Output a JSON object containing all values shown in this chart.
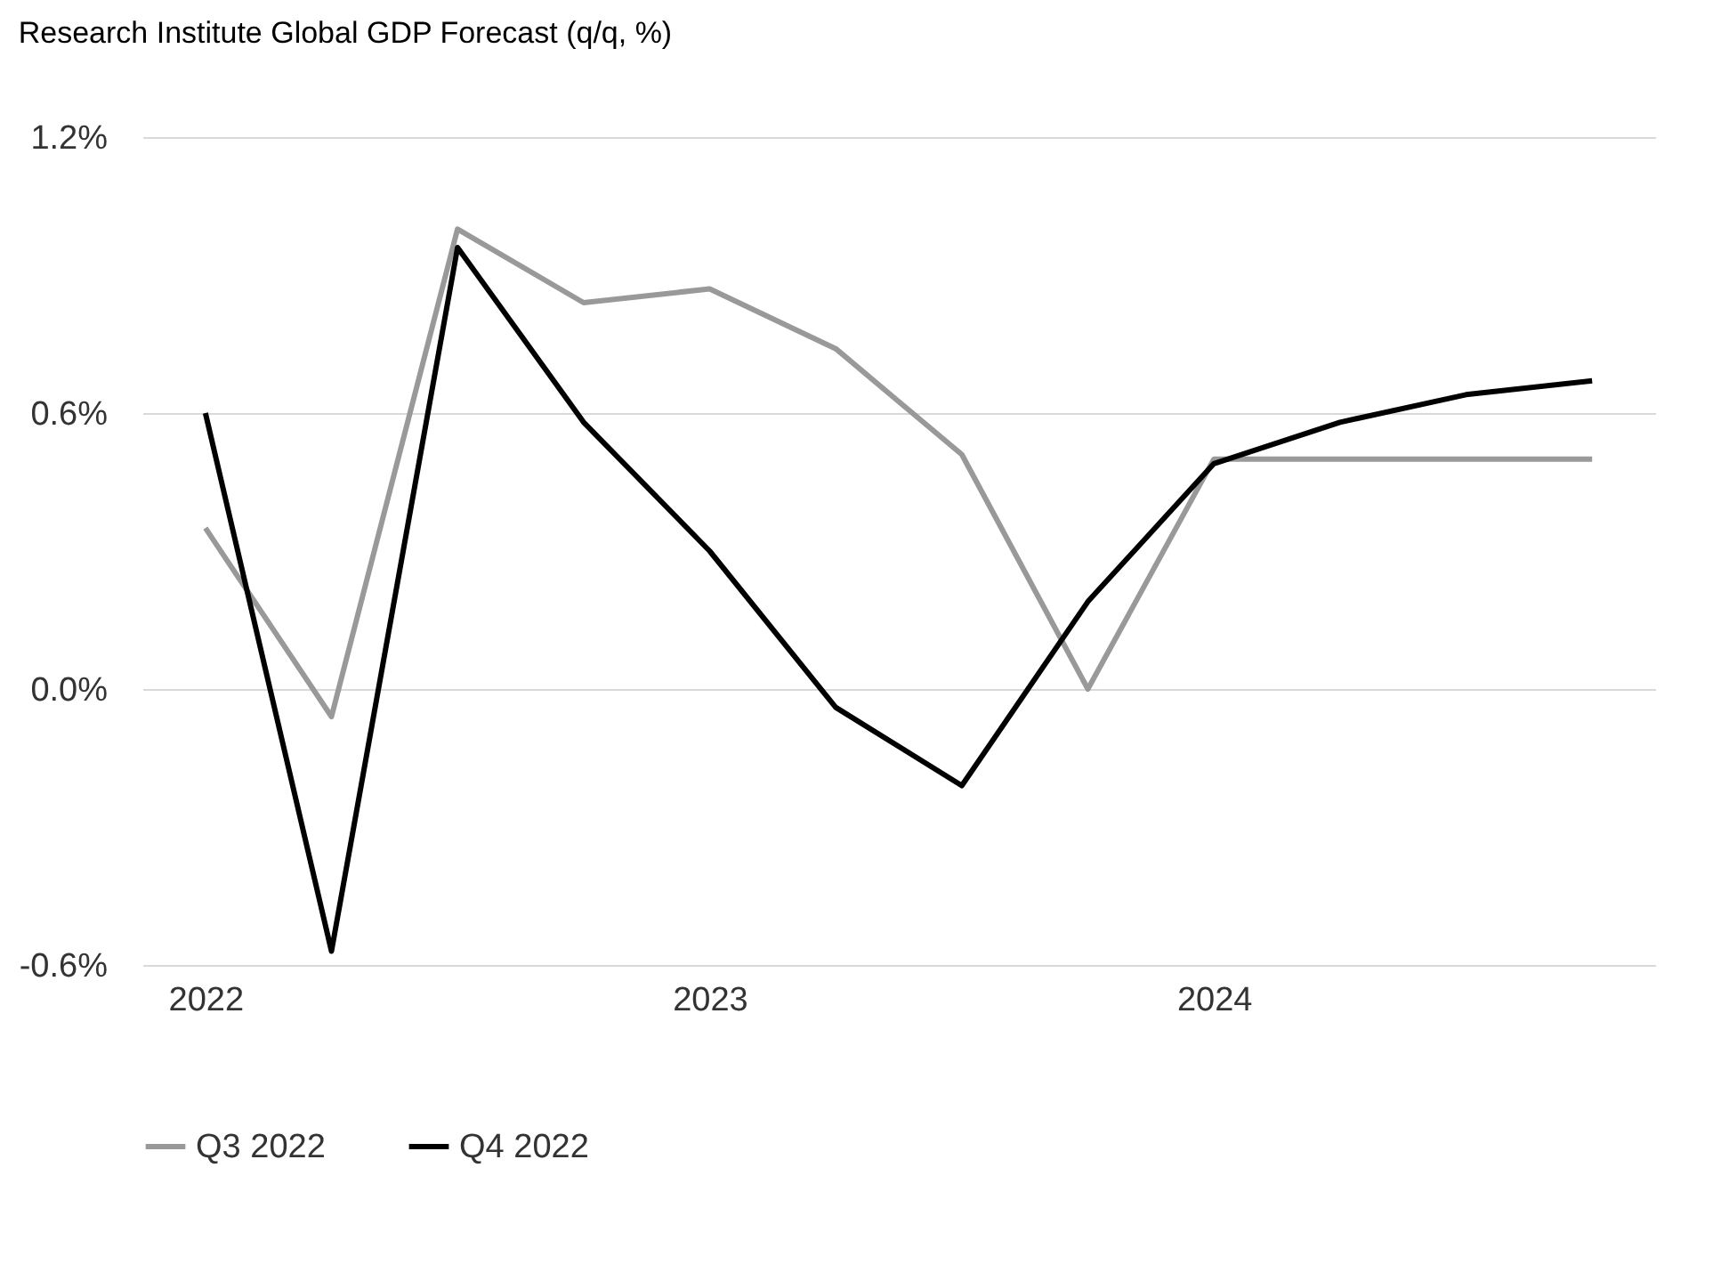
{
  "chart_data": {
    "type": "line",
    "title": "Research Institute Global GDP Forecast (q/q, %)",
    "categories": [
      "2022",
      null,
      null,
      null,
      "2023",
      null,
      null,
      null,
      "2024",
      null,
      null,
      null
    ],
    "series": [
      {
        "name": "Q3 2022",
        "color": "#999999",
        "values": [
          0.35,
          -0.06,
          1.0,
          0.84,
          0.87,
          0.74,
          0.51,
          0.0,
          0.5,
          0.5,
          0.5,
          0.5
        ]
      },
      {
        "name": "Q4 2022",
        "color": "#000000",
        "values": [
          0.6,
          -0.57,
          0.96,
          0.58,
          0.3,
          -0.04,
          -0.21,
          0.19,
          0.49,
          0.58,
          0.64,
          0.67
        ]
      }
    ],
    "ylim": [
      -0.6,
      1.2
    ],
    "yticks": [
      {
        "value": -0.6,
        "label": "-0.6%"
      },
      {
        "value": 0,
        "label": "0.0%"
      },
      {
        "value": 0.6,
        "label": "0.6%"
      },
      {
        "value": 1.2,
        "label": "1.2%"
      }
    ],
    "grid": "y",
    "legend": "bottom",
    "marker": "none",
    "line_style": "solid"
  }
}
